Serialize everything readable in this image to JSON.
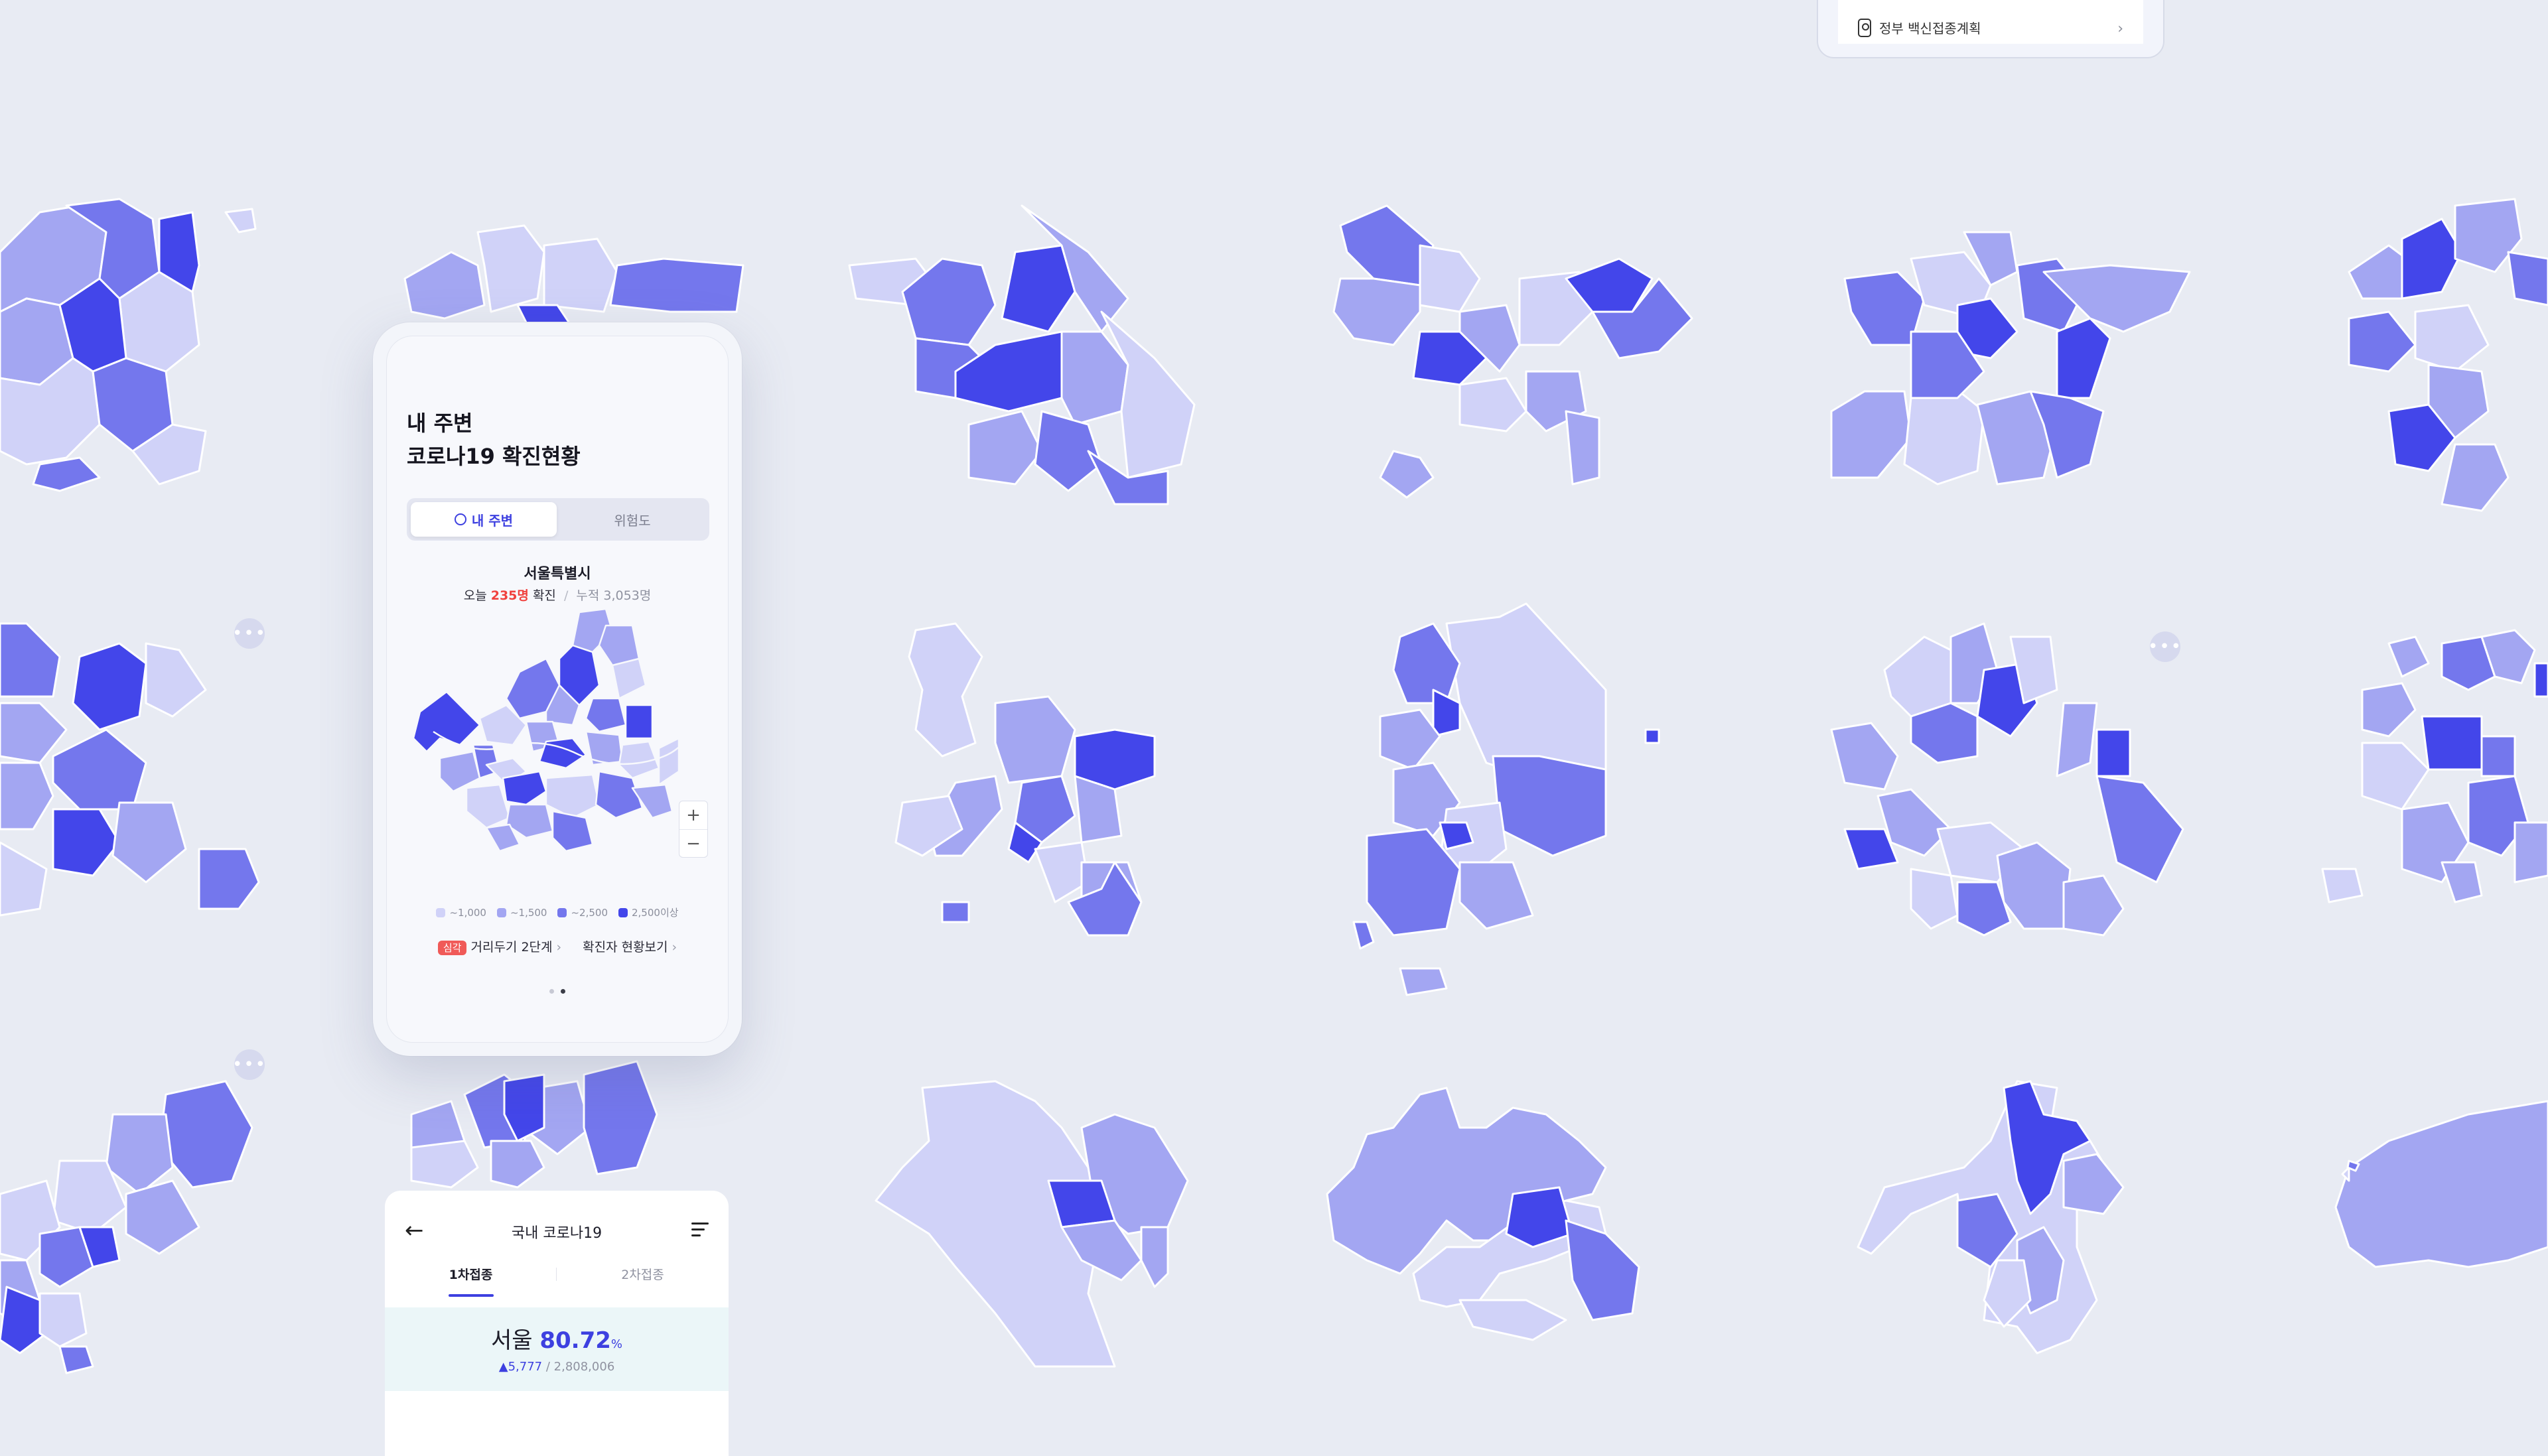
{
  "top_card": {
    "label": "정부 백신접종계획",
    "icon": "shield-pin-icon"
  },
  "phone": {
    "title_line1": "내 주변",
    "title_line2": "코로나19 확진현황",
    "tabs": [
      {
        "label": "내 주변",
        "active": true
      },
      {
        "label": "위험도",
        "active": false
      }
    ],
    "region": "서울특별시",
    "today_prefix": "오늘",
    "today_count": "235명",
    "today_suffix": "확진",
    "separator": "/",
    "cumulative": "누적 3,053명",
    "zoom_in": "+",
    "zoom_out": "−",
    "legend": [
      {
        "label": "~1,000",
        "color": "#d0d2f8"
      },
      {
        "label": "~1,500",
        "color": "#a3a6f2"
      },
      {
        "label": "~2,500",
        "color": "#7477ed"
      },
      {
        "label": "2,500이상",
        "color": "#4346ea"
      }
    ],
    "status_badge": "심각",
    "distancing_link": "거리두기 2단계",
    "cases_link": "확진자 현황보기",
    "chevron": "›"
  },
  "bottom_card": {
    "back_icon": "←",
    "title": "국내 코로나19",
    "tabs": [
      {
        "label": "1차접종",
        "active": true
      },
      {
        "label": "2차접종",
        "active": false
      }
    ],
    "region": "서울",
    "rate": "80.72",
    "unit": "%",
    "daily_increase": "▲5,777",
    "separator": "/",
    "total": "2,808,006"
  },
  "more_button": "•••",
  "colors": {
    "level1": "#d0d2f8",
    "level2": "#a3a6f2",
    "level3": "#7477ed",
    "level4": "#4346ea",
    "accent": "#3d40e0",
    "alert": "#f0413d"
  }
}
